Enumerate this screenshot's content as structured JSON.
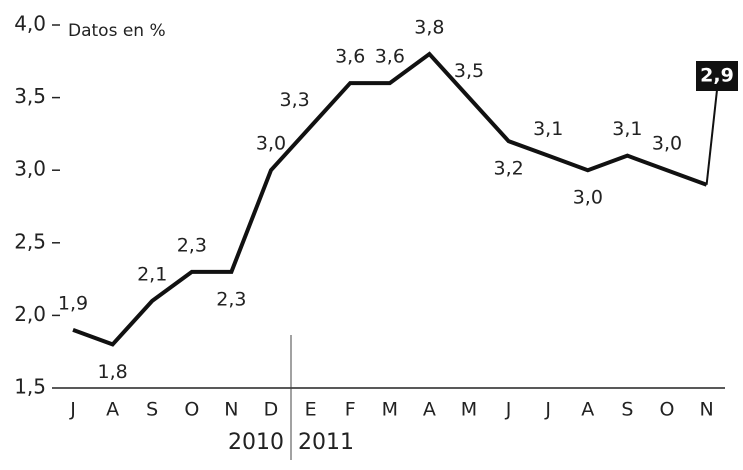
{
  "chart_data": {
    "type": "line",
    "annotation": "Datos en %",
    "categories": [
      "J",
      "A",
      "S",
      "O",
      "N",
      "D",
      "E",
      "F",
      "M",
      "A",
      "M",
      "J",
      "J",
      "A",
      "S",
      "O",
      "N"
    ],
    "years": [
      "2010",
      "2011"
    ],
    "series": [
      {
        "name": "Datos en %",
        "color": "#111111",
        "values": [
          1.9,
          1.8,
          2.1,
          2.3,
          2.3,
          3.0,
          3.3,
          3.6,
          3.6,
          3.8,
          3.5,
          3.2,
          3.1,
          3.0,
          3.1,
          3.0,
          2.9
        ],
        "value_labels": [
          "1,9",
          "1,8",
          "2,1",
          "2,3",
          "2,3",
          "3,0",
          "3,3",
          "3,6",
          "3,6",
          "3,8",
          "3,5",
          "3,2",
          "3,1",
          "3,0",
          "3,1",
          "3,0",
          "2,9"
        ]
      }
    ],
    "ylim": [
      1.5,
      4.0
    ],
    "yticks": [
      {
        "value": 1.5,
        "label": "1,5"
      },
      {
        "value": 2.0,
        "label": "2,0"
      },
      {
        "value": 2.5,
        "label": "2,5"
      },
      {
        "value": 3.0,
        "label": "3,0"
      },
      {
        "value": 3.5,
        "label": "3,5"
      },
      {
        "value": 4.0,
        "label": "4,0"
      }
    ]
  }
}
